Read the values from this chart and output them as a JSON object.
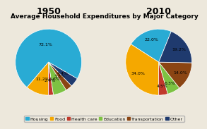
{
  "title": "Average Household Expenditures by Major Category",
  "year1": "1950",
  "year2": "2010",
  "categories": [
    "Housing",
    "Food",
    "Health care",
    "Education",
    "Transportation",
    "Other"
  ],
  "colors": [
    "#29ABD4",
    "#F5A800",
    "#C0392B",
    "#7DC242",
    "#8B4513",
    "#1F3A6E"
  ],
  "values_1950": [
    72.1,
    11.2,
    2.4,
    6.6,
    3.3,
    4.4
  ],
  "values_2010": [
    22.0,
    34.0,
    4.5,
    6.3,
    14.0,
    19.2
  ],
  "startangle_1950": -30,
  "startangle_2010": 68,
  "background_color": "#EDE8DC",
  "title_fontsize": 6.5,
  "year_fontsize": 9,
  "label_fontsize": 4.5,
  "legend_fontsize": 4.5
}
